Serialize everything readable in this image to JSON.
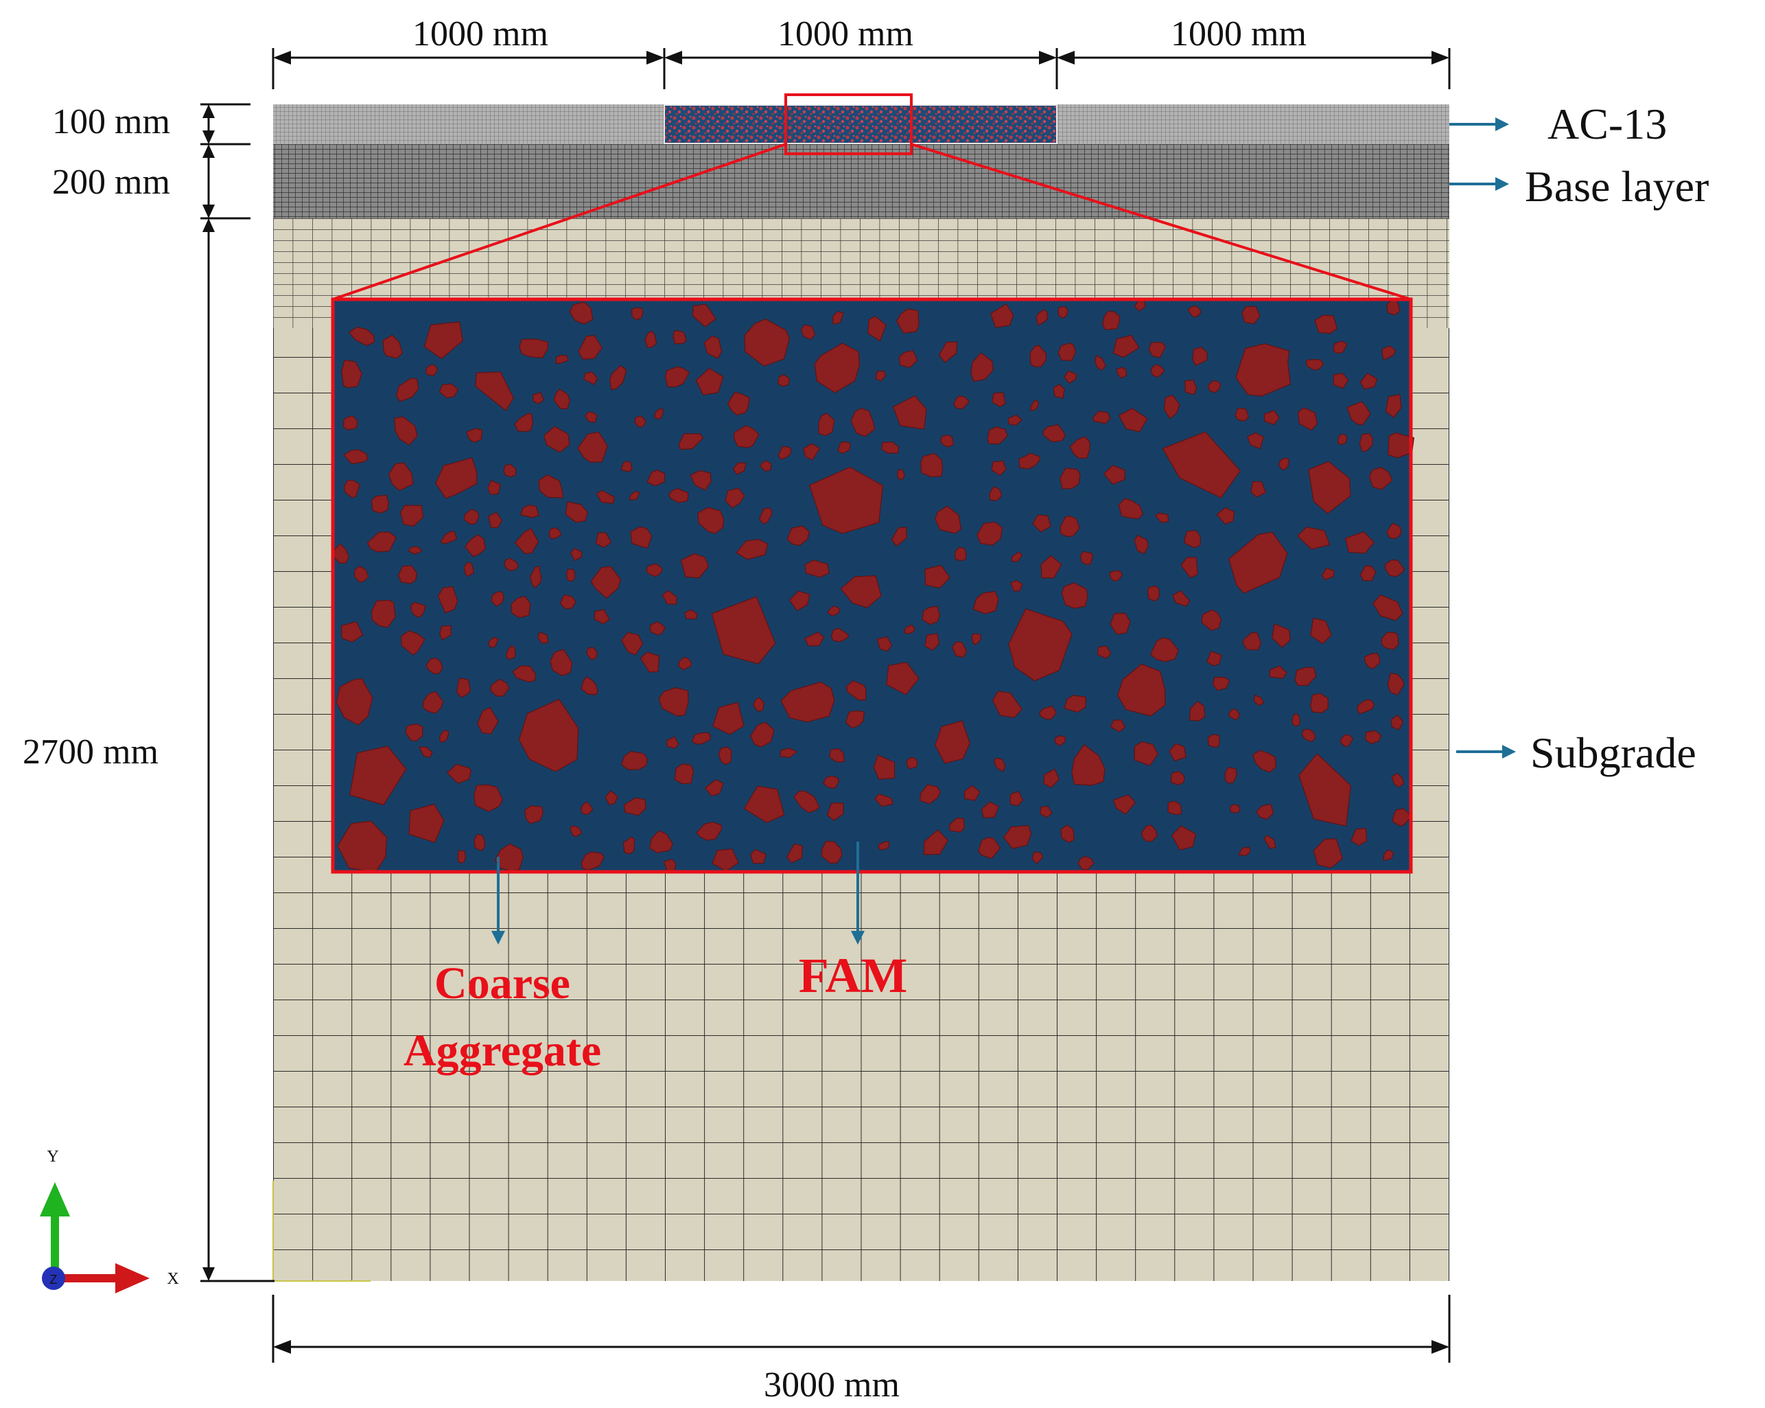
{
  "dimensions": {
    "top_widths": [
      "1000 mm",
      "1000 mm",
      "1000 mm"
    ],
    "layer_thickness": [
      "100 mm",
      "200 mm",
      "2700 mm"
    ],
    "total_width": "3000 mm"
  },
  "layers": {
    "surface": "AC-13",
    "base": "Base layer",
    "subgrade": "Subgrade"
  },
  "inset_labels": {
    "coarse_line1": "Coarse",
    "coarse_line2": "Aggregate",
    "fam": "FAM"
  },
  "axes": {
    "x": "X",
    "y": "Y",
    "z": "Z"
  },
  "colors": {
    "subgrade_fill": "#d9d4bf",
    "subgrade_grid": "#2a2a2a",
    "surface_mesh": "#9c9c9c",
    "base_mesh": "#5a5a5a",
    "fam_matrix": "#173f66",
    "aggregate": "#8c1f20",
    "highlight": "#e8101a",
    "arrow": "#1e6f96"
  }
}
